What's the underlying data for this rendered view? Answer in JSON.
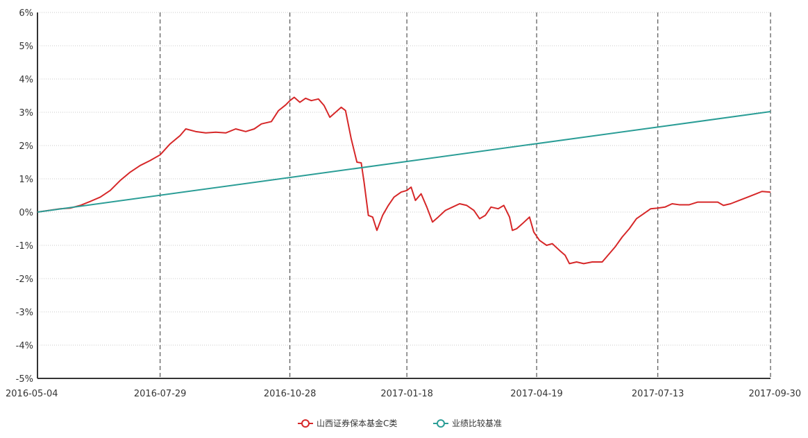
{
  "chart_data": {
    "type": "line",
    "title": "",
    "xlabel": "",
    "ylabel": "",
    "ylim": [
      -5,
      6
    ],
    "y_ticks": [
      "6%",
      "5%",
      "4%",
      "3%",
      "2%",
      "1%",
      "0%",
      "-1%",
      "-2%",
      "-3%",
      "-4%",
      "-5%"
    ],
    "x_ticks": [
      "2016-05-04",
      "2016-07-29",
      "2016-10-28",
      "2017-01-18",
      "2017-04-19",
      "2017-07-13",
      "2017-09-30"
    ],
    "legend_position": "bottom-center",
    "horizontal_grid": "dotted",
    "vertical_grid": "dashed",
    "series": [
      {
        "name": "山西证券保本基金C类",
        "color": "#d62728",
        "points": [
          [
            "2016-05-04",
            0.0
          ],
          [
            "2016-05-12",
            0.05
          ],
          [
            "2016-05-20",
            0.1
          ],
          [
            "2016-05-27",
            0.12
          ],
          [
            "2016-06-03",
            0.2
          ],
          [
            "2016-06-10",
            0.32
          ],
          [
            "2016-06-17",
            0.45
          ],
          [
            "2016-06-24",
            0.65
          ],
          [
            "2016-07-01",
            0.95
          ],
          [
            "2016-07-08",
            1.2
          ],
          [
            "2016-07-15",
            1.4
          ],
          [
            "2016-07-22",
            1.55
          ],
          [
            "2016-07-29",
            1.72
          ],
          [
            "2016-08-05",
            2.05
          ],
          [
            "2016-08-12",
            2.3
          ],
          [
            "2016-08-16",
            2.5
          ],
          [
            "2016-08-23",
            2.42
          ],
          [
            "2016-08-30",
            2.38
          ],
          [
            "2016-09-06",
            2.4
          ],
          [
            "2016-09-13",
            2.38
          ],
          [
            "2016-09-20",
            2.5
          ],
          [
            "2016-09-27",
            2.42
          ],
          [
            "2016-10-03",
            2.5
          ],
          [
            "2016-10-08",
            2.65
          ],
          [
            "2016-10-15",
            2.72
          ],
          [
            "2016-10-20",
            3.05
          ],
          [
            "2016-10-25",
            3.22
          ],
          [
            "2016-10-28",
            3.35
          ],
          [
            "2016-10-31",
            3.45
          ],
          [
            "2016-11-04",
            3.3
          ],
          [
            "2016-11-08",
            3.42
          ],
          [
            "2016-11-12",
            3.35
          ],
          [
            "2016-11-17",
            3.4
          ],
          [
            "2016-11-21",
            3.2
          ],
          [
            "2016-11-25",
            2.85
          ],
          [
            "2016-11-29",
            3.0
          ],
          [
            "2016-12-03",
            3.15
          ],
          [
            "2016-12-06",
            3.05
          ],
          [
            "2016-12-10",
            2.2
          ],
          [
            "2016-12-14",
            1.5
          ],
          [
            "2016-12-17",
            1.48
          ],
          [
            "2016-12-19",
            0.9
          ],
          [
            "2016-12-22",
            -0.1
          ],
          [
            "2016-12-25",
            -0.15
          ],
          [
            "2016-12-28",
            -0.55
          ],
          [
            "2017-01-01",
            -0.1
          ],
          [
            "2017-01-05",
            0.2
          ],
          [
            "2017-01-09",
            0.45
          ],
          [
            "2017-01-14",
            0.6
          ],
          [
            "2017-01-18",
            0.65
          ],
          [
            "2017-01-21",
            0.75
          ],
          [
            "2017-01-24",
            0.35
          ],
          [
            "2017-01-28",
            0.55
          ],
          [
            "2017-02-01",
            0.15
          ],
          [
            "2017-02-05",
            -0.3
          ],
          [
            "2017-02-09",
            -0.15
          ],
          [
            "2017-02-14",
            0.05
          ],
          [
            "2017-02-19",
            0.15
          ],
          [
            "2017-02-24",
            0.25
          ],
          [
            "2017-03-01",
            0.2
          ],
          [
            "2017-03-06",
            0.05
          ],
          [
            "2017-03-10",
            -0.2
          ],
          [
            "2017-03-14",
            -0.1
          ],
          [
            "2017-03-18",
            0.15
          ],
          [
            "2017-03-23",
            0.1
          ],
          [
            "2017-03-27",
            0.2
          ],
          [
            "2017-03-31",
            -0.15
          ],
          [
            "2017-04-02",
            -0.55
          ],
          [
            "2017-04-05",
            -0.5
          ],
          [
            "2017-04-09",
            -0.35
          ],
          [
            "2017-04-14",
            -0.15
          ],
          [
            "2017-04-17",
            -0.6
          ],
          [
            "2017-04-21",
            -0.85
          ],
          [
            "2017-04-26",
            -1.0
          ],
          [
            "2017-04-30",
            -0.95
          ],
          [
            "2017-05-05",
            -1.15
          ],
          [
            "2017-05-09",
            -1.3
          ],
          [
            "2017-05-12",
            -1.55
          ],
          [
            "2017-05-17",
            -1.5
          ],
          [
            "2017-05-22",
            -1.55
          ],
          [
            "2017-05-28",
            -1.5
          ],
          [
            "2017-06-04",
            -1.5
          ],
          [
            "2017-06-08",
            -1.3
          ],
          [
            "2017-06-13",
            -1.05
          ],
          [
            "2017-06-18",
            -0.75
          ],
          [
            "2017-06-23",
            -0.5
          ],
          [
            "2017-06-28",
            -0.2
          ],
          [
            "2017-07-03",
            -0.05
          ],
          [
            "2017-07-08",
            0.1
          ],
          [
            "2017-07-13",
            0.12
          ],
          [
            "2017-07-18",
            0.15
          ],
          [
            "2017-07-23",
            0.25
          ],
          [
            "2017-07-28",
            0.22
          ],
          [
            "2017-08-04",
            0.22
          ],
          [
            "2017-08-10",
            0.3
          ],
          [
            "2017-08-18",
            0.3
          ],
          [
            "2017-08-24",
            0.3
          ],
          [
            "2017-08-28",
            0.2
          ],
          [
            "2017-09-02",
            0.25
          ],
          [
            "2017-09-08",
            0.35
          ],
          [
            "2017-09-14",
            0.45
          ],
          [
            "2017-09-20",
            0.55
          ],
          [
            "2017-09-24",
            0.62
          ],
          [
            "2017-09-30",
            0.6
          ]
        ]
      },
      {
        "name": "业绩比较基准",
        "color": "#2a9d96",
        "points": [
          [
            "2016-05-04",
            0.0
          ],
          [
            "2017-09-30",
            3.02
          ]
        ]
      }
    ]
  }
}
